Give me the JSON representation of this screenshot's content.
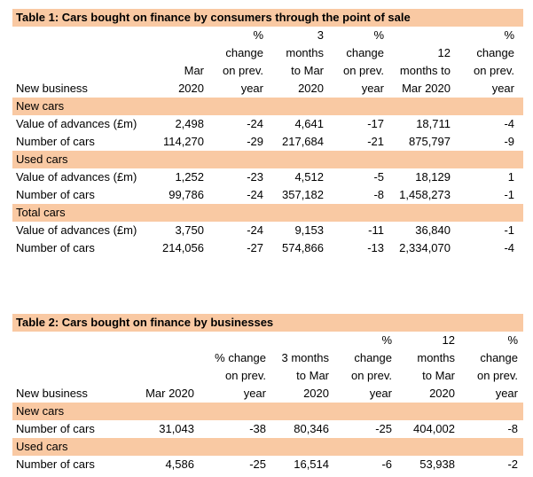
{
  "table1": {
    "title": "Table 1: Cars bought on finance by consumers through the point of sale",
    "headers": [
      "New business",
      "Mar\n2020",
      "%\nchange\non prev.\nyear",
      "3\nmonths\nto Mar\n2020",
      "%\nchange\non prev.\nyear",
      "12\nmonths to\nMar 2020",
      "%\nchange\non prev.\nyear"
    ],
    "sections": [
      {
        "label": "New cars",
        "rows": [
          {
            "label": "Value of advances (£m)",
            "values": [
              "2,498",
              "-24",
              "4,641",
              "-17",
              "18,711",
              "-4"
            ]
          },
          {
            "label": "Number of cars",
            "values": [
              "114,270",
              "-29",
              "217,684",
              "-21",
              "875,797",
              "-9"
            ]
          }
        ]
      },
      {
        "label": "Used cars",
        "rows": [
          {
            "label": "Value of advances (£m)",
            "values": [
              "1,252",
              "-23",
              "4,512",
              "-5",
              "18,129",
              "1"
            ]
          },
          {
            "label": "Number of cars",
            "values": [
              "99,786",
              "-24",
              "357,182",
              "-8",
              "1,458,273",
              "-1"
            ]
          }
        ]
      },
      {
        "label": "Total cars",
        "rows": [
          {
            "label": "Value of advances (£m)",
            "values": [
              "3,750",
              "-24",
              "9,153",
              "-11",
              "36,840",
              "-1"
            ]
          },
          {
            "label": "Number of cars",
            "values": [
              "214,056",
              "-27",
              "574,866",
              "-13",
              "2,334,070",
              "-4"
            ]
          }
        ]
      }
    ]
  },
  "table2": {
    "title": "Table 2: Cars bought on finance by businesses",
    "headers": [
      "New business",
      "Mar 2020",
      "% change\non prev.\nyear",
      "3 months\nto Mar\n2020",
      "%\nchange\non prev.\nyear",
      "12\nmonths\nto Mar\n2020",
      "%\nchange\non prev.\nyear"
    ],
    "sections": [
      {
        "label": "New cars",
        "rows": [
          {
            "label": "Number of cars",
            "values": [
              "31,043",
              "-38",
              "80,346",
              "-25",
              "404,002",
              "-8"
            ]
          }
        ]
      },
      {
        "label": "Used cars",
        "rows": [
          {
            "label": "Number of cars",
            "values": [
              "4,586",
              "-25",
              "16,514",
              "-6",
              "53,938",
              "-2"
            ]
          }
        ]
      }
    ]
  },
  "colors": {
    "band": "#f9c9a3"
  }
}
